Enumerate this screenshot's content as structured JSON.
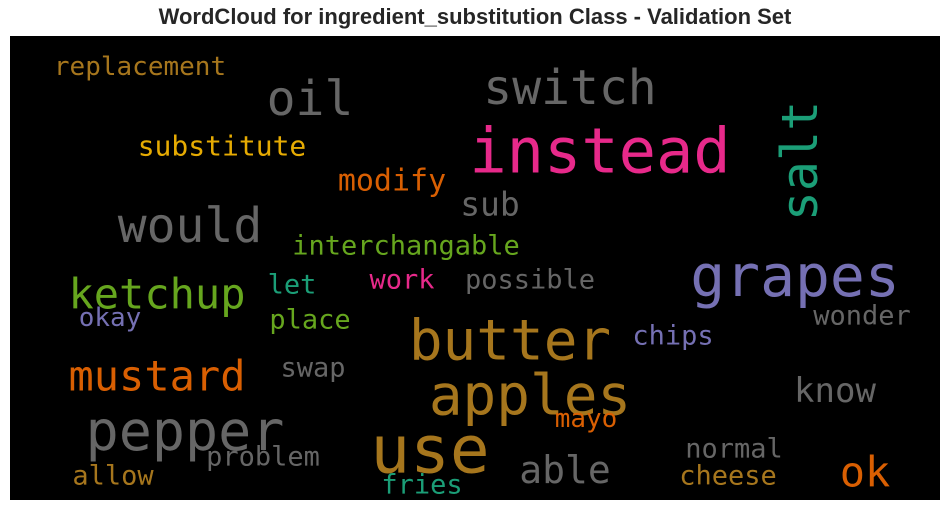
{
  "chart_data": {
    "type": "wordcloud",
    "title": "WordCloud for ingredient_substitution Class - Validation Set",
    "background": "#000000",
    "words": [
      {
        "text": "instead",
        "color": "#e7298a"
      },
      {
        "text": "use",
        "color": "#a6761d"
      },
      {
        "text": "butter",
        "color": "#a6761d"
      },
      {
        "text": "apples",
        "color": "#a6761d"
      },
      {
        "text": "grapes",
        "color": "#7570b3"
      },
      {
        "text": "pepper",
        "color": "#666666"
      },
      {
        "text": "salt",
        "color": "#1b9e77"
      },
      {
        "text": "switch",
        "color": "#666666"
      },
      {
        "text": "would",
        "color": "#666666"
      },
      {
        "text": "oil",
        "color": "#666666"
      },
      {
        "text": "ketchup",
        "color": "#66a61e"
      },
      {
        "text": "mustard",
        "color": "#d95f02"
      },
      {
        "text": "ok",
        "color": "#d95f02"
      },
      {
        "text": "able",
        "color": "#666666"
      },
      {
        "text": "know",
        "color": "#666666"
      },
      {
        "text": "sub",
        "color": "#666666"
      },
      {
        "text": "modify",
        "color": "#d95f02"
      },
      {
        "text": "substitute",
        "color": "#e6ab02"
      },
      {
        "text": "replacement",
        "color": "#a6761d"
      },
      {
        "text": "interchangable",
        "color": "#66a61e"
      },
      {
        "text": "work",
        "color": "#e7298a"
      },
      {
        "text": "possible",
        "color": "#666666"
      },
      {
        "text": "let",
        "color": "#1b9e77"
      },
      {
        "text": "okay",
        "color": "#7570b3"
      },
      {
        "text": "place",
        "color": "#66a61e"
      },
      {
        "text": "chips",
        "color": "#7570b3"
      },
      {
        "text": "wonder",
        "color": "#666666"
      },
      {
        "text": "swap",
        "color": "#666666"
      },
      {
        "text": "mayo",
        "color": "#d95f02"
      },
      {
        "text": "problem",
        "color": "#666666"
      },
      {
        "text": "normal",
        "color": "#666666"
      },
      {
        "text": "cheese",
        "color": "#a6761d"
      },
      {
        "text": "allow",
        "color": "#a6761d"
      },
      {
        "text": "fries",
        "color": "#1b9e77"
      }
    ]
  }
}
